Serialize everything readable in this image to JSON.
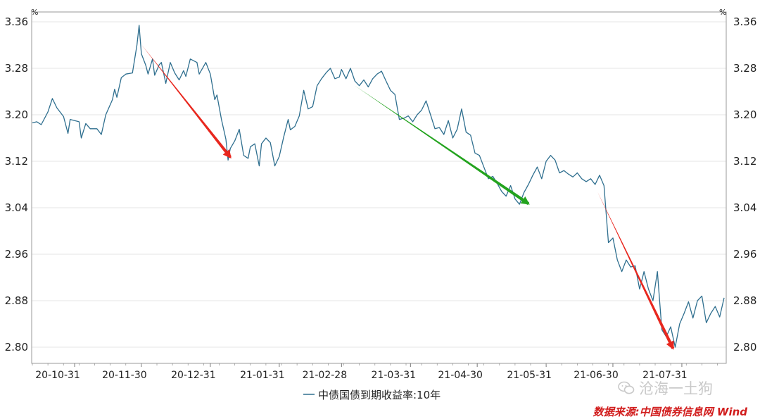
{
  "chart_data": {
    "type": "line",
    "unit_left": "%",
    "unit_right": "%",
    "ylim": [
      2.78,
      3.37
    ],
    "y_ticks": [
      "3.36",
      "3.28",
      "3.20",
      "3.12",
      "3.04",
      "2.96",
      "2.88",
      "2.80"
    ],
    "y_tick_values": [
      3.36,
      3.28,
      3.2,
      3.12,
      3.04,
      2.96,
      2.88,
      2.8
    ],
    "x_tick_labels": [
      "20-10-31",
      "20-11-30",
      "20-12-31",
      "21-01-31",
      "21-02-28",
      "21-03-31",
      "21-04-30",
      "21-05-31",
      "21-06-30",
      "21-07-31"
    ],
    "x_tick_dates": [
      "2020-10-31",
      "2020-11-30",
      "2020-12-31",
      "2021-01-31",
      "2021-02-28",
      "2021-03-31",
      "2021-04-30",
      "2021-05-31",
      "2021-06-30",
      "2021-07-31"
    ],
    "xlim": [
      "2020-10-12",
      "2021-08-19"
    ],
    "grid": true,
    "legend_position": "bottom-center",
    "series": [
      {
        "name": "中债国债到期收益率:10年",
        "color": "#2f6f8f",
        "points": [
          [
            "2020-10-12",
            3.186
          ],
          [
            "2020-10-14",
            3.188
          ],
          [
            "2020-10-16",
            3.183
          ],
          [
            "2020-10-19",
            3.205
          ],
          [
            "2020-10-21",
            3.228
          ],
          [
            "2020-10-23",
            3.212
          ],
          [
            "2020-10-26",
            3.197
          ],
          [
            "2020-10-28",
            3.168
          ],
          [
            "2020-10-29",
            3.192
          ],
          [
            "2020-11-02",
            3.188
          ],
          [
            "2020-11-03",
            3.16
          ],
          [
            "2020-11-05",
            3.185
          ],
          [
            "2020-11-07",
            3.176
          ],
          [
            "2020-11-10",
            3.176
          ],
          [
            "2020-11-12",
            3.166
          ],
          [
            "2020-11-14",
            3.2
          ],
          [
            "2020-11-17",
            3.226
          ],
          [
            "2020-11-18",
            3.244
          ],
          [
            "2020-11-19",
            3.23
          ],
          [
            "2020-11-21",
            3.264
          ],
          [
            "2020-11-23",
            3.27
          ],
          [
            "2020-11-26",
            3.272
          ],
          [
            "2020-11-28",
            3.32
          ],
          [
            "2020-11-29",
            3.354
          ],
          [
            "2020-11-30",
            3.305
          ],
          [
            "2020-12-02",
            3.285
          ],
          [
            "2020-12-03",
            3.27
          ],
          [
            "2020-12-05",
            3.296
          ],
          [
            "2020-12-06",
            3.268
          ],
          [
            "2020-12-08",
            3.286
          ],
          [
            "2020-12-09",
            3.29
          ],
          [
            "2020-12-11",
            3.254
          ],
          [
            "2020-12-13",
            3.29
          ],
          [
            "2020-12-15",
            3.272
          ],
          [
            "2020-12-17",
            3.26
          ],
          [
            "2020-12-19",
            3.276
          ],
          [
            "2020-12-20",
            3.266
          ],
          [
            "2020-12-22",
            3.296
          ],
          [
            "2020-12-25",
            3.29
          ],
          [
            "2020-12-26",
            3.27
          ],
          [
            "2020-12-29",
            3.29
          ],
          [
            "2020-12-31",
            3.27
          ],
          [
            "2021-01-02",
            3.226
          ],
          [
            "2021-01-03",
            3.234
          ],
          [
            "2021-01-05",
            3.192
          ],
          [
            "2021-01-07",
            3.158
          ],
          [
            "2021-01-08",
            3.122
          ],
          [
            "2021-01-09",
            3.142
          ],
          [
            "2021-01-11",
            3.155
          ],
          [
            "2021-01-13",
            3.175
          ],
          [
            "2021-01-15",
            3.13
          ],
          [
            "2021-01-17",
            3.125
          ],
          [
            "2021-01-18",
            3.145
          ],
          [
            "2021-01-20",
            3.15
          ],
          [
            "2021-01-22",
            3.112
          ],
          [
            "2021-01-23",
            3.15
          ],
          [
            "2021-01-25",
            3.16
          ],
          [
            "2021-01-27",
            3.152
          ],
          [
            "2021-01-29",
            3.112
          ],
          [
            "2021-01-31",
            3.128
          ],
          [
            "2021-02-02",
            3.162
          ],
          [
            "2021-02-04",
            3.192
          ],
          [
            "2021-02-05",
            3.174
          ],
          [
            "2021-02-07",
            3.18
          ],
          [
            "2021-02-09",
            3.198
          ],
          [
            "2021-02-11",
            3.242
          ],
          [
            "2021-02-13",
            3.21
          ],
          [
            "2021-02-15",
            3.214
          ],
          [
            "2021-02-17",
            3.25
          ],
          [
            "2021-02-19",
            3.262
          ],
          [
            "2021-02-21",
            3.272
          ],
          [
            "2021-02-23",
            3.28
          ],
          [
            "2021-02-25",
            3.262
          ],
          [
            "2021-02-27",
            3.265
          ],
          [
            "2021-02-28",
            3.278
          ],
          [
            "2021-03-02",
            3.262
          ],
          [
            "2021-03-04",
            3.28
          ],
          [
            "2021-03-06",
            3.258
          ],
          [
            "2021-03-08",
            3.25
          ],
          [
            "2021-03-10",
            3.26
          ],
          [
            "2021-03-12",
            3.248
          ],
          [
            "2021-03-14",
            3.262
          ],
          [
            "2021-03-16",
            3.27
          ],
          [
            "2021-03-18",
            3.275
          ],
          [
            "2021-03-20",
            3.258
          ],
          [
            "2021-03-22",
            3.242
          ],
          [
            "2021-03-24",
            3.235
          ],
          [
            "2021-03-26",
            3.192
          ],
          [
            "2021-03-28",
            3.194
          ],
          [
            "2021-03-30",
            3.198
          ],
          [
            "2021-04-01",
            3.188
          ],
          [
            "2021-04-03",
            3.2
          ],
          [
            "2021-04-05",
            3.208
          ],
          [
            "2021-04-07",
            3.224
          ],
          [
            "2021-04-09",
            3.2
          ],
          [
            "2021-04-11",
            3.176
          ],
          [
            "2021-04-13",
            3.178
          ],
          [
            "2021-04-15",
            3.166
          ],
          [
            "2021-04-17",
            3.19
          ],
          [
            "2021-04-19",
            3.16
          ],
          [
            "2021-04-21",
            3.175
          ],
          [
            "2021-04-23",
            3.21
          ],
          [
            "2021-04-25",
            3.17
          ],
          [
            "2021-04-27",
            3.165
          ],
          [
            "2021-04-29",
            3.134
          ],
          [
            "2021-05-01",
            3.13
          ],
          [
            "2021-05-03",
            3.11
          ],
          [
            "2021-05-05",
            3.09
          ],
          [
            "2021-05-07",
            3.094
          ],
          [
            "2021-05-09",
            3.082
          ],
          [
            "2021-05-11",
            3.068
          ],
          [
            "2021-05-13",
            3.06
          ],
          [
            "2021-05-15",
            3.078
          ],
          [
            "2021-05-17",
            3.055
          ],
          [
            "2021-05-19",
            3.046
          ],
          [
            "2021-05-21",
            3.066
          ],
          [
            "2021-05-23",
            3.08
          ],
          [
            "2021-05-25",
            3.096
          ],
          [
            "2021-05-27",
            3.11
          ],
          [
            "2021-05-29",
            3.09
          ],
          [
            "2021-05-31",
            3.12
          ],
          [
            "2021-06-02",
            3.13
          ],
          [
            "2021-06-04",
            3.122
          ],
          [
            "2021-06-06",
            3.1
          ],
          [
            "2021-06-08",
            3.104
          ],
          [
            "2021-06-10",
            3.098
          ],
          [
            "2021-06-12",
            3.093
          ],
          [
            "2021-06-14",
            3.1
          ],
          [
            "2021-06-16",
            3.09
          ],
          [
            "2021-06-18",
            3.085
          ],
          [
            "2021-06-20",
            3.09
          ],
          [
            "2021-06-22",
            3.08
          ],
          [
            "2021-06-24",
            3.096
          ],
          [
            "2021-06-26",
            3.078
          ],
          [
            "2021-06-28",
            2.98
          ],
          [
            "2021-06-30",
            2.988
          ],
          [
            "2021-07-02",
            2.95
          ],
          [
            "2021-07-04",
            2.93
          ],
          [
            "2021-07-06",
            2.95
          ],
          [
            "2021-07-08",
            2.938
          ],
          [
            "2021-07-10",
            2.94
          ],
          [
            "2021-07-12",
            2.9
          ],
          [
            "2021-07-14",
            2.93
          ],
          [
            "2021-07-16",
            2.9
          ],
          [
            "2021-07-18",
            2.88
          ],
          [
            "2021-07-20",
            2.93
          ],
          [
            "2021-07-22",
            2.83
          ],
          [
            "2021-07-24",
            2.818
          ],
          [
            "2021-07-26",
            2.835
          ],
          [
            "2021-07-28",
            2.8
          ],
          [
            "2021-07-30",
            2.84
          ],
          [
            "2021-08-01",
            2.858
          ],
          [
            "2021-08-03",
            2.878
          ],
          [
            "2021-08-05",
            2.85
          ],
          [
            "2021-08-07",
            2.88
          ],
          [
            "2021-08-09",
            2.888
          ],
          [
            "2021-08-11",
            2.842
          ],
          [
            "2021-08-13",
            2.858
          ],
          [
            "2021-08-15",
            2.87
          ],
          [
            "2021-08-17",
            2.852
          ],
          [
            "2021-08-19",
            2.885
          ]
        ]
      }
    ],
    "annotations": [
      {
        "type": "arrow",
        "color": "#e8271e",
        "from": [
          "2020-11-30",
          3.321
        ],
        "to": [
          "2021-01-09",
          3.127
        ]
      },
      {
        "type": "arrow",
        "color": "#23a31e",
        "from": [
          "2021-03-06",
          3.25
        ],
        "to": [
          "2021-05-23",
          3.047
        ]
      },
      {
        "type": "arrow",
        "color": "#e8271e",
        "from": [
          "2021-06-23",
          3.068
        ],
        "to": [
          "2021-07-27",
          2.798
        ]
      }
    ]
  },
  "watermark": "沧海一土狗",
  "source": "数据来源:中国债券信息网 Wind"
}
